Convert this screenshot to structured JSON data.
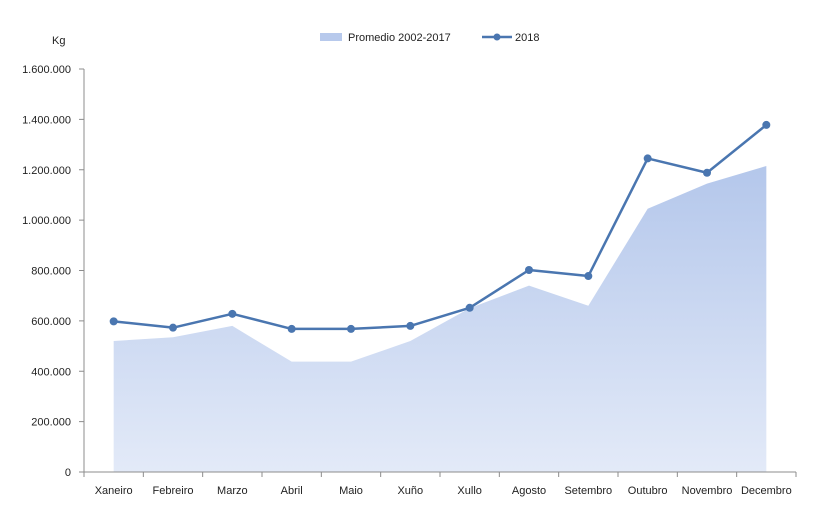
{
  "chart_data": {
    "type": "area",
    "ylabel": "Kg",
    "ylim": [
      0,
      1600000
    ],
    "y_ticks": [
      0,
      200000,
      400000,
      600000,
      800000,
      1000000,
      1200000,
      1400000,
      1600000
    ],
    "y_tick_labels": [
      "0",
      "200.000",
      "400.000",
      "600.000",
      "800.000",
      "1.000.000",
      "1.200.000",
      "1.400.000",
      "1.600.000"
    ],
    "categories": [
      "Xaneiro",
      "Febreiro",
      "Marzo",
      "Abril",
      "Maio",
      "Xuño",
      "Xullo",
      "Agosto",
      "Setembro",
      "Outubro",
      "Novembro",
      "Decembro"
    ],
    "grid": false,
    "legend_position": "top",
    "series": [
      {
        "name": "Promedio 2002-2017",
        "type": "area",
        "color": "#b7c9ec",
        "values": [
          520000,
          535000,
          580000,
          438000,
          438000,
          520000,
          650000,
          740000,
          660000,
          1045000,
          1145000,
          1215000
        ]
      },
      {
        "name": "2018",
        "type": "line",
        "color": "#4a76b0",
        "values": [
          598000,
          573000,
          628000,
          568000,
          568000,
          580000,
          652000,
          802000,
          778000,
          1245000,
          1188000,
          1378000
        ]
      }
    ]
  }
}
